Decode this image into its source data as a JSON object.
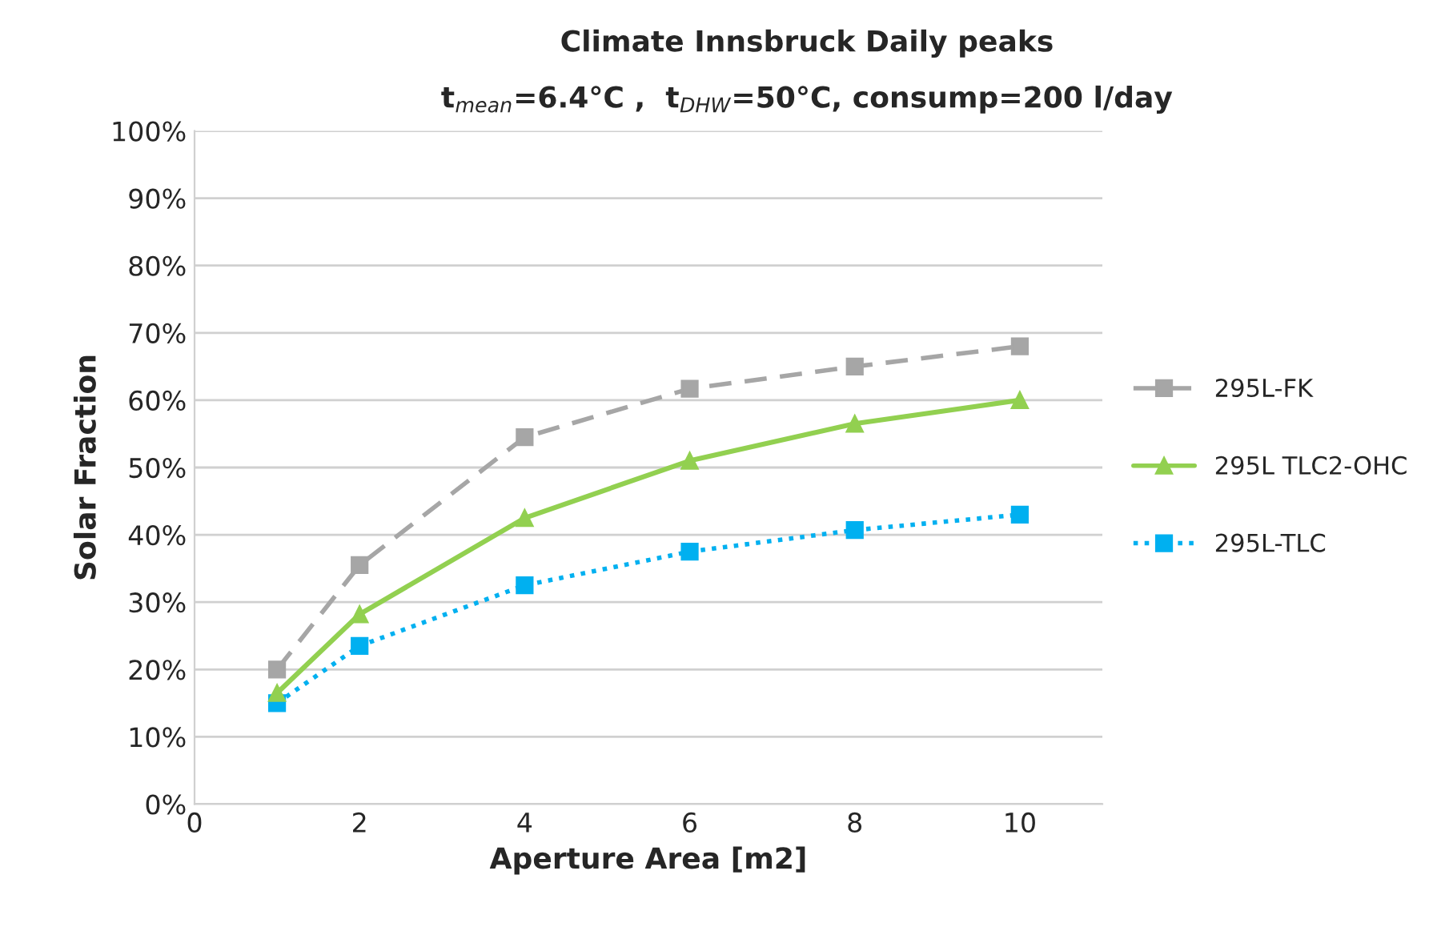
{
  "chart_data": {
    "type": "line",
    "title": "Climate Innsbruck Daily peaks",
    "subtitle": "t$_{mean}$=6.4°C ,  t$_{DHW}$=50°C, consump=200 l/day",
    "xlabel": "Aperture Area [m2]",
    "ylabel": "Solar Fraction",
    "x": [
      1,
      2,
      4,
      6,
      8,
      10
    ],
    "series": [
      {
        "name": "295L-FK",
        "color": "#a6a6a6",
        "marker": "square",
        "line_style": "dashed",
        "values": [
          20,
          35.5,
          54.5,
          61.7,
          65,
          68
        ]
      },
      {
        "name": "295L TLC2-OHC",
        "color": "#92d050",
        "marker": "triangle",
        "line_style": "solid",
        "values": [
          16.5,
          28.2,
          42.5,
          51,
          56.5,
          60
        ]
      },
      {
        "name": "295L-TLC",
        "color": "#00b0f0",
        "marker": "square",
        "line_style": "dotted",
        "values": [
          15,
          23.5,
          32.5,
          37.5,
          40.7,
          43
        ]
      }
    ],
    "xlim": [
      0,
      11
    ],
    "xticks": [
      0,
      2,
      4,
      6,
      8,
      10
    ],
    "ylim": [
      0,
      100
    ],
    "yticks": [
      {
        "value": 0,
        "label": "0%"
      },
      {
        "value": 10,
        "label": "10%"
      },
      {
        "value": 20,
        "label": "20%"
      },
      {
        "value": 30,
        "label": "30%"
      },
      {
        "value": 40,
        "label": "40%"
      },
      {
        "value": 50,
        "label": "50%"
      },
      {
        "value": 60,
        "label": "60%"
      },
      {
        "value": 70,
        "label": "70%"
      },
      {
        "value": 80,
        "label": "80%"
      },
      {
        "value": 90,
        "label": "90%"
      },
      {
        "value": 100,
        "label": "100%"
      }
    ],
    "grid": "y",
    "legend": "right"
  }
}
